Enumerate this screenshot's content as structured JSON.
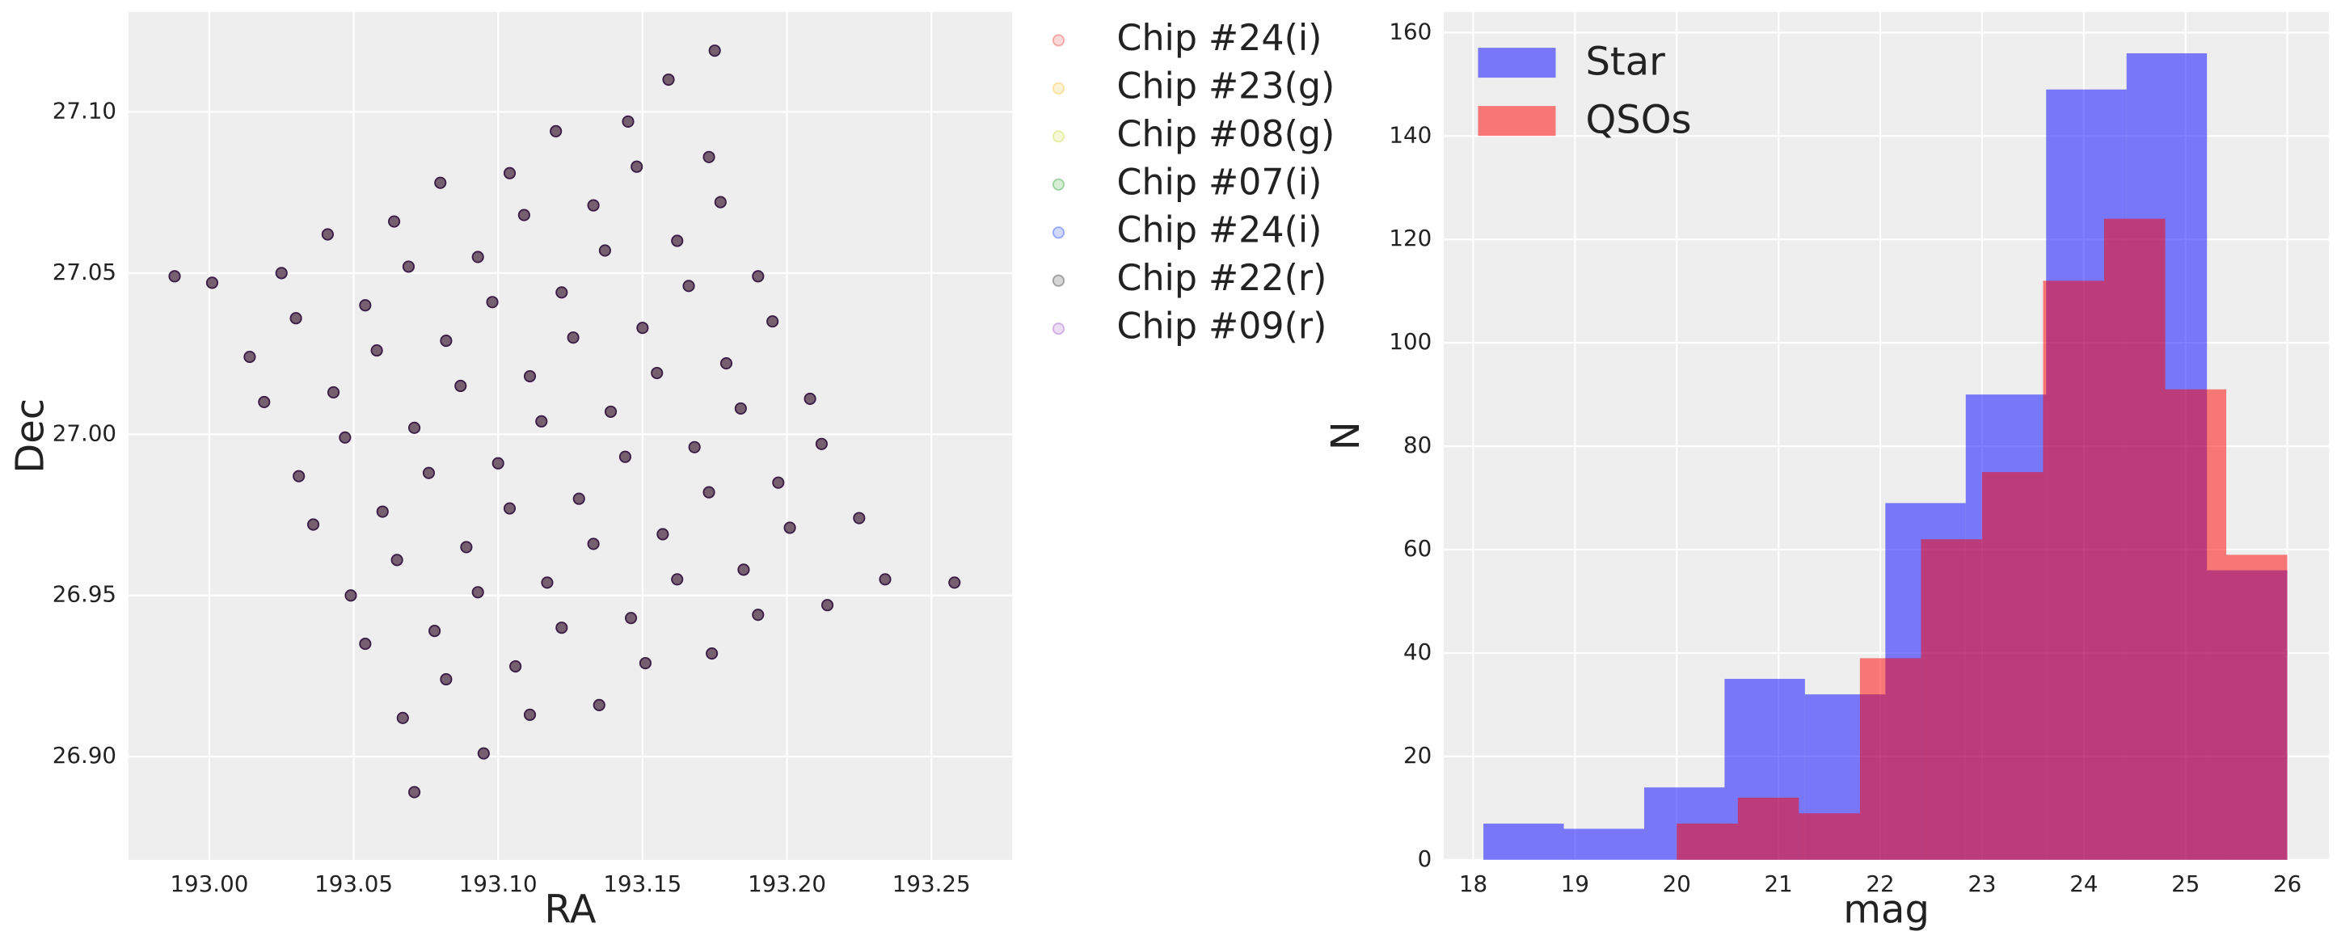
{
  "chart_data": [
    {
      "type": "scatter",
      "xlabel": "RA",
      "ylabel": "Dec",
      "xlim": [
        192.972,
        193.278
      ],
      "ylim": [
        26.868,
        27.131
      ],
      "xticks": [
        {
          "value": 193.0,
          "label": "193.00"
        },
        {
          "value": 193.05,
          "label": "193.05"
        },
        {
          "value": 193.1,
          "label": "193.10"
        },
        {
          "value": 193.15,
          "label": "193.15"
        },
        {
          "value": 193.2,
          "label": "193.20"
        },
        {
          "value": 193.25,
          "label": "193.25"
        }
      ],
      "yticks": [
        {
          "value": 26.9,
          "label": "26.90"
        },
        {
          "value": 26.95,
          "label": "26.95"
        },
        {
          "value": 27.0,
          "label": "27.00"
        },
        {
          "value": 27.05,
          "label": "27.05"
        },
        {
          "value": 27.1,
          "label": "27.10"
        }
      ],
      "grid": true,
      "legend": "outside right",
      "alpha": 0.2,
      "marker_color": "#76606f",
      "marker_edge_color": "#3a1c46",
      "series": [
        {
          "name": "Chip #24(i)",
          "color": "#e8403f",
          "x": [
            193.001,
            193.025,
            193.041,
            193.064,
            193.08,
            193.104,
            193.12,
            193.145,
            193.159,
            193.014,
            193.03,
            193.054
          ],
          "y": [
            27.047,
            27.05,
            27.062,
            27.066,
            27.078,
            27.081,
            27.094,
            27.097,
            27.11,
            27.024,
            27.036,
            27.04
          ]
        },
        {
          "name": "Chip #23(g)",
          "color": "#f2c230",
          "x": [
            193.069,
            193.093,
            193.109,
            193.133,
            193.148,
            193.173,
            193.019,
            193.043,
            193.058,
            193.082,
            193.098,
            193.122
          ],
          "y": [
            27.052,
            27.055,
            27.068,
            27.071,
            27.083,
            27.086,
            27.01,
            27.013,
            27.026,
            27.029,
            27.041,
            27.044
          ]
        },
        {
          "name": "Chip #08(g)",
          "color": "#c8da3a",
          "x": [
            193.137,
            193.162,
            193.177,
            193.031,
            193.047,
            193.071,
            193.087,
            193.111,
            193.126,
            193.15,
            193.166,
            193.19
          ],
          "y": [
            27.057,
            27.06,
            27.072,
            26.987,
            26.999,
            27.002,
            27.015,
            27.018,
            27.03,
            27.033,
            27.046,
            27.049
          ]
        },
        {
          "name": "Chip #07(i)",
          "color": "#2ca02c",
          "x": [
            193.036,
            193.06,
            193.076,
            193.1,
            193.115,
            193.139,
            193.155,
            193.179,
            193.195,
            193.049,
            193.065,
            193.089
          ],
          "y": [
            26.972,
            26.976,
            26.988,
            26.991,
            27.004,
            27.007,
            27.019,
            27.022,
            27.035,
            26.95,
            26.961,
            26.965
          ]
        },
        {
          "name": "Chip #24(i)",
          "color": "#2040ff",
          "x": [
            193.104,
            193.128,
            193.144,
            193.168,
            193.184,
            193.208,
            193.054,
            193.078,
            193.093,
            193.117,
            193.133,
            193.157
          ],
          "y": [
            26.977,
            26.98,
            26.993,
            26.996,
            27.008,
            27.011,
            26.935,
            26.939,
            26.951,
            26.954,
            26.966,
            26.969
          ]
        },
        {
          "name": "Chip #22(r)",
          "color": "#333333",
          "x": [
            193.173,
            193.197,
            193.212,
            193.067,
            193.082,
            193.106,
            193.122,
            193.146,
            193.162,
            193.185,
            193.201,
            193.225
          ],
          "y": [
            26.982,
            26.985,
            26.997,
            26.912,
            26.924,
            26.928,
            26.94,
            26.943,
            26.955,
            26.958,
            26.971,
            26.974
          ]
        },
        {
          "name": "Chip #09(r)",
          "color": "#a050c8",
          "x": [
            193.071,
            193.095,
            193.111,
            193.135,
            193.151,
            193.174,
            193.19,
            193.214,
            193.234,
            192.988,
            193.258,
            193.175
          ],
          "y": [
            26.889,
            26.901,
            26.913,
            26.916,
            26.929,
            26.932,
            26.944,
            26.947,
            26.955,
            27.049,
            26.954,
            27.119
          ]
        }
      ]
    },
    {
      "type": "histogram",
      "xlabel": "mag",
      "ylabel": "N",
      "xlim": [
        17.71,
        26.41
      ],
      "ylim": [
        0,
        164
      ],
      "xticks": [
        18,
        19,
        20,
        21,
        22,
        23,
        24,
        25,
        26
      ],
      "yticks": [
        0,
        20,
        40,
        60,
        80,
        100,
        120,
        140,
        160
      ],
      "grid": true,
      "legend": "upper left",
      "alpha": 0.5,
      "series": [
        {
          "name": "Star",
          "color": "#0000ff",
          "bins": [
            18.1,
            18.89,
            19.68,
            20.47,
            21.26,
            22.05,
            22.84,
            23.63,
            24.42,
            25.21,
            26.0
          ],
          "values": [
            7,
            6,
            14,
            35,
            32,
            69,
            90,
            149,
            156,
            56
          ]
        },
        {
          "name": "QSOs",
          "color": "#ff0000",
          "bins": [
            20.0,
            20.6,
            21.2,
            21.8,
            22.4,
            23.0,
            23.6,
            24.2,
            24.8,
            25.4,
            26.0
          ],
          "values": [
            7,
            12,
            9,
            39,
            62,
            75,
            112,
            124,
            91,
            59
          ]
        }
      ]
    }
  ]
}
